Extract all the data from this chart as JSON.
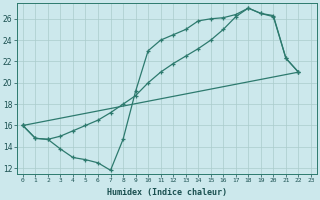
{
  "xlabel": "Humidex (Indice chaleur)",
  "bg_color": "#cce8ec",
  "grid_color": "#aacccc",
  "line_color": "#2d7a6e",
  "xlim": [
    -0.5,
    23.5
  ],
  "ylim": [
    11.5,
    27.5
  ],
  "xticks": [
    0,
    1,
    2,
    3,
    4,
    5,
    6,
    7,
    8,
    9,
    10,
    11,
    12,
    13,
    14,
    15,
    16,
    17,
    18,
    19,
    20,
    21,
    22,
    23
  ],
  "yticks": [
    12,
    14,
    16,
    18,
    20,
    22,
    24,
    26
  ],
  "line1": [
    [
      0,
      16.0
    ],
    [
      1,
      14.8
    ],
    [
      2,
      14.7
    ],
    [
      3,
      13.8
    ],
    [
      4,
      13.0
    ],
    [
      5,
      12.8
    ],
    [
      6,
      12.5
    ],
    [
      7,
      11.8
    ],
    [
      8,
      14.7
    ],
    [
      9,
      19.2
    ],
    [
      10,
      23.0
    ],
    [
      11,
      24.0
    ],
    [
      12,
      24.5
    ],
    [
      13,
      25.0
    ],
    [
      14,
      25.8
    ],
    [
      15,
      26.0
    ],
    [
      16,
      26.1
    ],
    [
      17,
      26.4
    ],
    [
      18,
      27.0
    ],
    [
      19,
      26.5
    ],
    [
      20,
      26.2
    ],
    [
      21,
      22.3
    ],
    [
      22,
      21.0
    ]
  ],
  "line2": [
    [
      0,
      16.0
    ],
    [
      1,
      14.8
    ],
    [
      2,
      14.7
    ],
    [
      3,
      15.0
    ],
    [
      4,
      15.5
    ],
    [
      5,
      16.0
    ],
    [
      6,
      16.5
    ],
    [
      7,
      17.2
    ],
    [
      8,
      18.0
    ],
    [
      9,
      18.8
    ],
    [
      10,
      20.0
    ],
    [
      11,
      21.0
    ],
    [
      12,
      21.8
    ],
    [
      13,
      22.5
    ],
    [
      14,
      23.2
    ],
    [
      15,
      24.0
    ],
    [
      16,
      25.0
    ],
    [
      17,
      26.2
    ],
    [
      18,
      27.0
    ],
    [
      19,
      26.5
    ],
    [
      20,
      26.3
    ],
    [
      21,
      22.3
    ],
    [
      22,
      21.0
    ]
  ],
  "line3": [
    [
      0,
      16.0
    ],
    [
      22,
      21.0
    ]
  ]
}
